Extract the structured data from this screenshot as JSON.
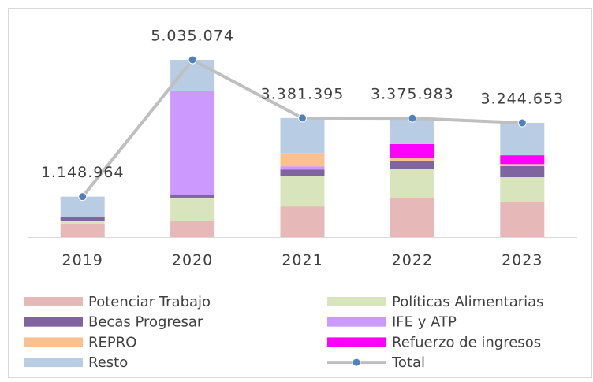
{
  "chart_data": {
    "type": "bar",
    "stacked": true,
    "categories": [
      "2019",
      "2020",
      "2021",
      "2022",
      "2023"
    ],
    "series": [
      {
        "name": "Potenciar Trabajo",
        "color": "#e6b8b7",
        "values": [
          380000,
          450000,
          870000,
          1100000,
          985000
        ]
      },
      {
        "name": "Políticas Alimentarias",
        "color": "#d8e4bc",
        "values": [
          90000,
          670000,
          870000,
          830000,
          715000
        ]
      },
      {
        "name": "Becas Progresar",
        "color": "#8064a2",
        "values": [
          90000,
          70000,
          180000,
          225000,
          315000
        ]
      },
      {
        "name": "IFE y ATP",
        "color": "#cc99ff",
        "values": [
          0,
          2955000,
          90000,
          0,
          0
        ]
      },
      {
        "name": "REPRO",
        "color": "#fac090",
        "values": [
          0,
          0,
          380000,
          90000,
          60000
        ]
      },
      {
        "name": "Refuerzo de ingresos",
        "color": "#ff00ff",
        "values": [
          0,
          0,
          0,
          400000,
          250000
        ]
      },
      {
        "name": "Resto",
        "color": "#b8cce4",
        "values": [
          589000,
          890000,
          991000,
          731000,
          920000
        ]
      },
      {
        "name": "Total",
        "type": "line",
        "color": "#bfbfbf",
        "marker_color": "#4f81bd",
        "values": [
          1148964,
          5035074,
          3381395,
          3375983,
          3244653
        ],
        "value_labels": [
          "1.148.964",
          "5.035.074",
          "3.381.395",
          "3.375.983",
          "3.244.653"
        ]
      }
    ]
  }
}
